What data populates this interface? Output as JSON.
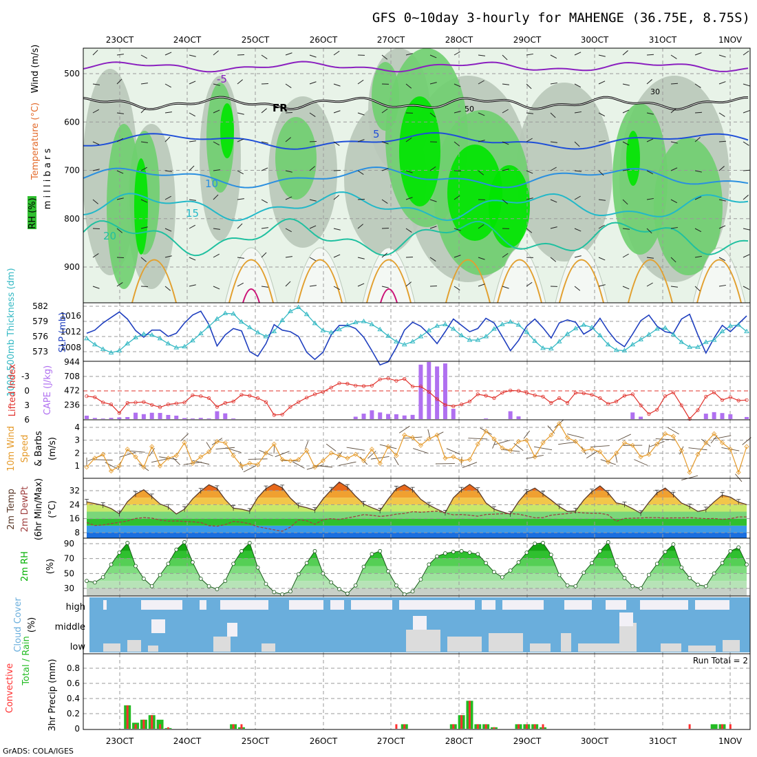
{
  "title": "GFS 0~10day 3-hourly for MAHENGE (36.75E, 8.75S)",
  "credit": "GrADS: COLA/IGES",
  "colors": {
    "grid": "#9a9a9a",
    "rh_light": "#e8f3e8",
    "rh_gray": "#b9c8b9",
    "rh_mid": "#6fcf6f",
    "rh_bright": "#00e400",
    "thickness": "#35b9c4",
    "slp": "#1f3fbf",
    "lifted_index": "#e0302a",
    "cape": "#b070f0",
    "wind_speed": "#e59a2a",
    "barb": "#5a4a3a",
    "temp_line": "#5a3a2a",
    "dewpoint": "#a04040",
    "rh2m": "#00b000",
    "cloud_blue": "#6aaedc",
    "cloud_gray": "#dcdcdc",
    "cloud_white": "#f2f0f6",
    "precip_total": "#22bb22",
    "precip_conv": "#ff3030"
  },
  "chart_data": [
    {
      "panel": "upper-air",
      "type": "heatmap",
      "x": [
        "23OCT",
        "24OCT",
        "25OCT",
        "26OCT",
        "27OCT",
        "28OCT",
        "29OCT",
        "30OCT",
        "31OCT",
        "1NOV"
      ],
      "ylabel": "millibars",
      "yticks": [
        500,
        600,
        700,
        800,
        900
      ],
      "legend_labels": [
        "Wind (m/s)",
        "Temperature (°C)",
        "RH (%)"
      ],
      "isotherm_labels": [
        "-5",
        "FR",
        "5",
        "10",
        "15",
        "20"
      ],
      "rh_labels": [
        "30",
        "50"
      ]
    },
    {
      "panel": "thickness-slp",
      "type": "line",
      "ylabel_left": "1000-500mb Thickness (dm)",
      "ylabel_right": "SLP (mb)",
      "yticks_left": [
        573,
        576,
        579,
        582
      ],
      "yticks_right": [
        1008,
        1012,
        1016
      ],
      "series": [
        {
          "name": "1000-500mb Thickness (dm)",
          "values": [
            575.6,
            574.4,
            573.5,
            572.8,
            573.2,
            574.6,
            575.8,
            576.5,
            576.3,
            575.6,
            574.6,
            573.8,
            574.0,
            575.2,
            576.6,
            578.0,
            579.5,
            580.6,
            580.5,
            578.9,
            577.8,
            576.8,
            576.0,
            577.0,
            579.2,
            581.0,
            581.8,
            580.4,
            578.6,
            577.2,
            576.8,
            577.4,
            578.2,
            578.8,
            579.0,
            578.4,
            577.4,
            576.1,
            575.0,
            574.4,
            575.0,
            576.0,
            577.2,
            578.1,
            578.4,
            577.5,
            576.2,
            575.3,
            575.3,
            576.0,
            577.5,
            578.4,
            578.9,
            578.3,
            576.9,
            575.1,
            573.7,
            573.6,
            575.0,
            576.5,
            577.6,
            578.3,
            577.8,
            576.2,
            574.4,
            573.3,
            573.2,
            574.4,
            575.4,
            576.4,
            577.5,
            577.7,
            576.4,
            574.9,
            573.9,
            573.9,
            574.9,
            575.3,
            577.0,
            578.1,
            578.3,
            577.0
          ]
        },
        {
          "name": "SLP (mb)",
          "values": [
            1011.6,
            1012.4,
            1014.2,
            1015.6,
            1017.0,
            1015.2,
            1012.3,
            1010.6,
            1012.4,
            1012.4,
            1010.8,
            1011.6,
            1014.2,
            1016.2,
            1017.2,
            1013.8,
            1008.4,
            1011.2,
            1012.8,
            1012.2,
            1007.0,
            1005.8,
            1009.0,
            1013.8,
            1012.4,
            1012.0,
            1010.8,
            1006.8,
            1005.0,
            1006.8,
            1011.2,
            1013.6,
            1013.6,
            1012.8,
            1010.6,
            1007.2,
            1003.6,
            1004.4,
            1008.0,
            1012.4,
            1014.4,
            1013.4,
            1011.4,
            1009.0,
            1012.0,
            1015.2,
            1013.6,
            1012.0,
            1012.8,
            1015.4,
            1014.2,
            1010.8,
            1007.2,
            1009.8,
            1013.4,
            1015.2,
            1013.0,
            1010.4,
            1014.2,
            1015.0,
            1014.4,
            1011.4,
            1012.6,
            1015.4,
            1012.2,
            1009.6,
            1008.2,
            1011.4,
            1014.8,
            1016.2,
            1013.4,
            1012.0,
            1011.6,
            1015.2,
            1016.4,
            1011.2,
            1006.6,
            1010.4,
            1013.6,
            1012.0,
            1014.0,
            1016.0
          ]
        }
      ],
      "marker": "triangle"
    },
    {
      "panel": "cape-li",
      "type": "bar",
      "ylabel_left": "Lifted Index",
      "ylabel_right": "CAPE (J/kg)",
      "yticks_left": [
        -3,
        0,
        3,
        6
      ],
      "yticks_right": [
        236,
        472,
        708,
        944
      ],
      "series": [
        {
          "name": "CAPE (J/kg)",
          "values": [
            57,
            19,
            9,
            20,
            28,
            34,
            106,
            82,
            105,
            102,
            69,
            57,
            17,
            10,
            20,
            10,
            130,
            95,
            10,
            0,
            0,
            0,
            0,
            0,
            0,
            0,
            0,
            0,
            0,
            0,
            0,
            0,
            0,
            40,
            90,
            145,
            110,
            85,
            80,
            60,
            70,
            900,
            1000,
            870,
            920,
            170,
            0,
            0,
            0,
            10,
            0,
            0,
            130,
            45,
            0,
            0,
            0,
            0,
            0,
            0,
            0,
            0,
            0,
            0,
            0,
            0,
            0,
            110,
            40,
            0,
            0,
            0,
            0,
            0,
            0,
            0,
            90,
            115,
            100,
            80,
            0,
            35
          ]
        },
        {
          "name": "Lifted Index",
          "values": [
            1.1,
            1.3,
            2.4,
            2.8,
            4.6,
            2.5,
            2.4,
            2.3,
            2.9,
            3.4,
            2.8,
            2.6,
            2.4,
            0.9,
            1.1,
            1.5,
            3.3,
            2.5,
            2.2,
            0.8,
            1.0,
            1.5,
            2.3,
            5.0,
            4.9,
            3.3,
            2.3,
            1.4,
            0.7,
            0.2,
            -0.7,
            -1.6,
            -1.5,
            -1.1,
            -1.0,
            -1.1,
            -2.4,
            -2.6,
            -2.1,
            -2.5,
            -0.9,
            -0.9,
            0.2,
            1.7,
            2.9,
            3.2,
            2.8,
            2.2,
            0.7,
            1.0,
            1.5,
            0.4,
            -0.1,
            0.0,
            0.4,
            0.9,
            1.2,
            2.5,
            1.5,
            2.5,
            0.4,
            0.5,
            0.8,
            1.5,
            2.7,
            2.2,
            1.0,
            0.7,
            3.0,
            4.8,
            3.9,
            1.1,
            0.3,
            3.0,
            5.8,
            4.0,
            1.2,
            0.3,
            1.9,
            1.3,
            2.0,
            1.9
          ]
        }
      ]
    },
    {
      "panel": "10m-wind",
      "type": "line",
      "ylabel": "10m Wind Speed & Barbs (m/s)",
      "yticks": [
        1,
        2,
        3,
        4
      ],
      "series": [
        {
          "name": "10m Wind Speed",
          "values": [
            0.9,
            1.6,
            1.9,
            0.6,
            1.0,
            2.3,
            1.7,
            0.9,
            2.5,
            1.0,
            1.6,
            1.8,
            2.8,
            1.2,
            1.7,
            2.1,
            2.9,
            2.8,
            1.8,
            1.0,
            1.2,
            1.1,
            2.0,
            2.7,
            1.5,
            1.4,
            1.5,
            2.2,
            0.9,
            1.4,
            2.0,
            1.8,
            1.6,
            1.9,
            1.4,
            2.3,
            1.2,
            2.5,
            1.8,
            3.4,
            3.2,
            2.6,
            3.1,
            3.4,
            1.6,
            1.7,
            1.4,
            1.5,
            2.7,
            3.7,
            3.1,
            2.4,
            2.2,
            2.9,
            3.0,
            1.7,
            2.8,
            3.4,
            4.3,
            3.2,
            2.9,
            2.2,
            2.3,
            2.1,
            1.3,
            2.0,
            2.8,
            2.6,
            1.7,
            1.9,
            2.7,
            3.5,
            3.3,
            2.2,
            0.5,
            1.9,
            2.8,
            3.5,
            2.8,
            2.3,
            0.5,
            2.5
          ]
        }
      ]
    },
    {
      "panel": "2m-temp",
      "type": "area",
      "ylabel": "2m Temp 2m DewPt (6hr Min/Max) (°C)",
      "yticks": [
        8,
        16,
        24,
        32
      ],
      "series": [
        {
          "name": "2m Temp",
          "values": [
            25.6,
            24.6,
            23.6,
            21.8,
            18.8,
            25.7,
            30.0,
            32.5,
            28.6,
            24.4,
            22.6,
            18.7,
            21.4,
            27.3,
            31.8,
            35.4,
            33.3,
            26.9,
            22.0,
            21.4,
            20.3,
            28.1,
            33.2,
            35.9,
            33.7,
            27.7,
            23.4,
            22.3,
            20.8,
            27.2,
            32.4,
            36.9,
            34.0,
            28.9,
            24.4,
            22.3,
            20.5,
            27.2,
            33.1,
            35.4,
            32.4,
            27.1,
            23.8,
            21.4,
            19.3,
            27.9,
            32.4,
            35.6,
            32.2,
            25.0,
            21.4,
            19.9,
            18.6,
            25.7,
            31.2,
            33.5,
            30.1,
            26.6,
            22.9,
            20.1,
            20.4,
            26.6,
            31.4,
            34.7,
            30.7,
            25.0,
            24.0,
            21.7,
            19.1,
            25.3,
            30.8,
            33.5,
            29.6,
            24.9,
            22.9,
            20.1,
            21.1,
            25.6,
            29.5,
            28.3,
            25.5,
            24.0
          ]
        },
        {
          "name": "2m DewPt",
          "values": [
            13.8,
            12.1,
            12.4,
            13.2,
            13.9,
            14.7,
            16.1,
            16.6,
            16.3,
            15.2,
            14.6,
            14.7,
            14.4,
            14.2,
            13.8,
            12.0,
            11.7,
            12.6,
            14.4,
            14.0,
            13.1,
            11.4,
            10.5,
            9.6,
            8.8,
            11.2,
            15.3,
            14.8,
            12.8,
            15.4,
            16.0,
            15.5,
            16.4,
            17.3,
            18.3,
            17.9,
            17.3,
            17.7,
            18.6,
            19.0,
            20.0,
            19.7,
            20.0,
            20.3,
            19.2,
            18.2,
            18.4,
            18.0,
            17.4,
            18.4,
            18.6,
            18.8,
            18.9,
            18.6,
            17.6,
            16.5,
            16.6,
            18.0,
            18.5,
            18.9,
            19.7,
            19.3,
            19.1,
            19.1,
            18.2,
            14.5,
            16.1,
            16.3,
            16.4,
            16.6,
            16.6,
            16.3,
            16.5,
            16.4,
            16.6,
            16.3,
            16.0,
            16.1,
            15.6,
            16.0,
            17.0,
            17.0
          ]
        }
      ]
    },
    {
      "panel": "2m-rh",
      "type": "area",
      "ylabel": "2m RH (%)",
      "yticks": [
        30,
        50,
        70,
        90
      ],
      "series": [
        {
          "name": "2m RH",
          "values": [
            40,
            38,
            45,
            62,
            78,
            91,
            60,
            43,
            33,
            48,
            63,
            82,
            92,
            65,
            43,
            33,
            29,
            40,
            63,
            80,
            91,
            58,
            36,
            25,
            22,
            26,
            49,
            64,
            80,
            50,
            38,
            29,
            23,
            34,
            59,
            76,
            80,
            53,
            34,
            22,
            26,
            42,
            62,
            73,
            77,
            79,
            80,
            78,
            76,
            64,
            52,
            45,
            54,
            65,
            78,
            90,
            91,
            75,
            48,
            34,
            33,
            51,
            64,
            80,
            92,
            60,
            44,
            33,
            30,
            48,
            63,
            79,
            89,
            58,
            44,
            35,
            33,
            50,
            64,
            80,
            85,
            62
          ]
        }
      ]
    },
    {
      "panel": "cloud-cover",
      "type": "area",
      "ylabel": "Cloud Cover (%)",
      "yticks": [
        "low",
        "middle",
        "high"
      ]
    },
    {
      "panel": "precip",
      "type": "bar",
      "ylabel": "3hr Precip (mm)",
      "legend_labels": [
        "Total / Rain",
        "Convective"
      ],
      "annotation": "Run Total = 2",
      "yticks": [
        0,
        0.2,
        0.4,
        0.6,
        0.8
      ],
      "series": [
        {
          "name": "Total / Rain",
          "values": [
            0,
            0,
            0,
            0,
            0,
            0.31,
            0.08,
            0.12,
            0.18,
            0.12,
            0.01,
            0,
            0,
            0,
            0,
            0,
            0,
            0,
            0.06,
            0.02,
            0,
            0,
            0,
            0,
            0,
            0,
            0,
            0,
            0,
            0,
            0,
            0,
            0,
            0,
            0,
            0,
            0,
            0,
            0,
            0.06,
            0,
            0,
            0,
            0,
            0,
            0.06,
            0.18,
            0.37,
            0.06,
            0.06,
            0.02,
            0,
            0,
            0.06,
            0.06,
            0.06,
            0.02,
            0,
            0,
            0,
            0,
            0,
            0,
            0,
            0,
            0,
            0,
            0,
            0,
            0,
            0,
            0,
            0,
            0,
            0,
            0,
            0,
            0.06,
            0.06,
            0,
            0,
            0,
            0
          ]
        },
        {
          "name": "Convective",
          "values": [
            0,
            0,
            0,
            0,
            0,
            0.31,
            0.06,
            0.12,
            0.18,
            0.06,
            0.02,
            0,
            0,
            0,
            0,
            0,
            0,
            0,
            0.06,
            0.06,
            0,
            0,
            0,
            0,
            0,
            0,
            0,
            0,
            0,
            0,
            0,
            0,
            0,
            0,
            0,
            0,
            0,
            0,
            0.06,
            0.06,
            0,
            0,
            0,
            0,
            0,
            0.06,
            0.18,
            0.37,
            0.06,
            0.06,
            0.02,
            0,
            0,
            0.06,
            0.06,
            0.06,
            0.06,
            0,
            0,
            0,
            0,
            0,
            0,
            0,
            0,
            0,
            0,
            0,
            0,
            0,
            0,
            0,
            0,
            0,
            0.06,
            0,
            0,
            0,
            0.06,
            0.06,
            0,
            0,
            0,
            0
          ]
        }
      ]
    }
  ]
}
